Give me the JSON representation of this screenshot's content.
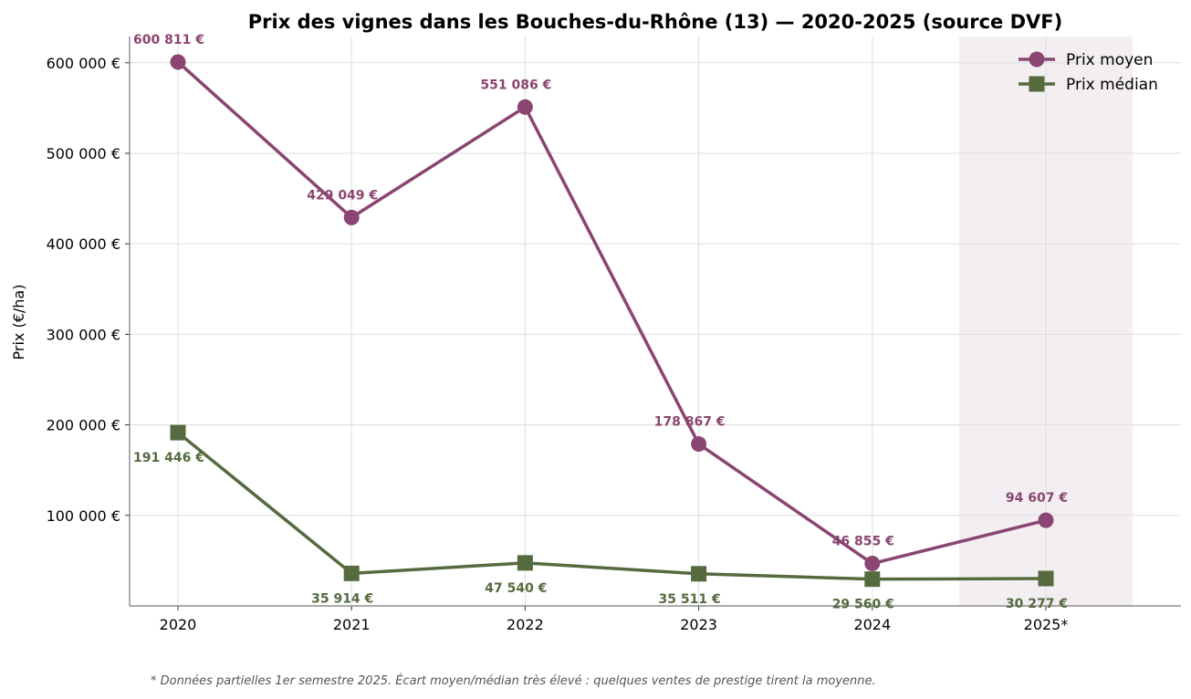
{
  "chart_data": {
    "type": "line",
    "title": "Prix des vignes dans les Bouches-du-Rhône (13) — 2020-2025 (source DVF)",
    "xlabel": "",
    "ylabel": "Prix (€/ha)",
    "categories": [
      "2020",
      "2021",
      "2022",
      "2023",
      "2024",
      "2025*"
    ],
    "ylim": [
      0,
      629000
    ],
    "yticks": [
      100000,
      200000,
      300000,
      400000,
      500000,
      600000
    ],
    "ytick_labels": [
      "100 000 €",
      "200 000 €",
      "300 000 €",
      "400 000 €",
      "500 000 €",
      "600 000 €"
    ],
    "grid": true,
    "legend_position": "top-right",
    "highlighted_range": [
      "2025*"
    ],
    "series": [
      {
        "name": "Prix moyen",
        "marker": "circle",
        "color": "#8a4570",
        "values": [
          600811,
          429049,
          551086,
          178867,
          46855,
          94607
        ],
        "labels": [
          "600 811 €",
          "429 049 €",
          "551 086 €",
          "178 867 €",
          "46 855 €",
          "94 607 €"
        ],
        "label_position": "above"
      },
      {
        "name": "Prix médian",
        "marker": "square",
        "color": "#556b3f",
        "values": [
          191446,
          35914,
          47540,
          35511,
          29560,
          30277
        ],
        "labels": [
          "191 446 €",
          "35 914 €",
          "47 540 €",
          "35 511 €",
          "29 560 €",
          "30 277 €"
        ],
        "label_position": "below"
      }
    ],
    "highlight_color": "#f3eef2",
    "footnote": "* Données partielles 1er semestre 2025. Écart moyen/médian très élevé : quelques ventes de prestige tirent la moyenne."
  }
}
